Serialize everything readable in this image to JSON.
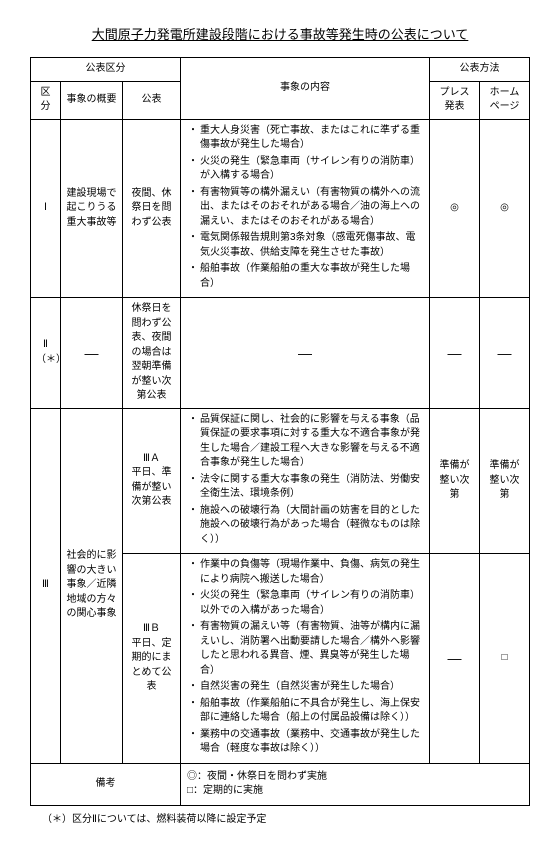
{
  "title": "大間原子力発電所建設段階における事故等発生時の公表について",
  "headers": {
    "kouhyou_kubun": "公表区分",
    "jishou_naiyou": "事象の内容",
    "kouhyou_houhou": "公表方法",
    "kubun": "区分",
    "jishou_gaiyou": "事象の概要",
    "kouhyou": "公表",
    "press": "プレス発表",
    "homepage": "ホームページ"
  },
  "rows": {
    "r1": {
      "kubun": "Ⅰ",
      "gaiyou": "建設現場で起こりうる重大事故等",
      "kouhyou": "夜間、休祭日を問わず公表",
      "items": [
        "重大人身災害（死亡事故、またはこれに準ずる重傷事故が発生した場合）",
        "火災の発生（緊急車両（サイレン有りの消防車）が入構する場合）",
        "有害物質等の構外漏えい（有害物質の構外への流出、またはそのおそれがある場合／油の海上への漏えい、またはそのおそれがある場合）",
        "電気関係報告規則第3条対象（感電死傷事故、電気火災事故、供給支障を発生させた事故）",
        "船舶事故（作業船舶の重大な事故が発生した場合）"
      ],
      "press": "◎",
      "hp": "◎"
    },
    "r2": {
      "kubun": "Ⅱ",
      "kubun_note": "（＊）",
      "gaiyou": "—",
      "kouhyou": "休祭日を問わず公表、夜間の場合は翌朝準備が整い次第公表",
      "items_dash": "—",
      "press": "—",
      "hp": "—"
    },
    "r3a": {
      "kouhyou": "ⅢＡ",
      "kouhyou_note": "平日、準備が整い次第公表",
      "items": [
        "品質保証に関し、社会的に影響を与える事象（品質保証の要求事項に対する重大な不適合事象が発生した場合／建設工程へ大きな影響を与える不適合事象が発生した場合）",
        "法令に関する重大な事象の発生（消防法、労働安全衛生法、環境条例）",
        "施設への破壊行為（大間計画の妨害を目的とした施設への破壊行為があった場合（軽微なものは除く））"
      ],
      "press": "準備が整い次第",
      "hp": "準備が整い次第"
    },
    "r3_common": {
      "kubun": "Ⅲ",
      "gaiyou": "社会的に影響の大きい事象／近隣地域の方々の関心事象"
    },
    "r3b": {
      "kouhyou": "ⅢＢ",
      "kouhyou_note": "平日、定期的にまとめて公表",
      "items": [
        "作業中の負傷等（現場作業中、負傷、病気の発生により病院へ搬送した場合）",
        "火災の発生（緊急車両（サイレン有りの消防車）以外での入構があった場合）",
        "有害物質の漏えい等（有害物質、油等が構内に漏えいし、消防署へ出動要請した場合／構外へ影響したと思われる異音、煙、異臭等が発生した場合）",
        "自然災害の発生（自然災害が発生した場合）",
        "船舶事故（作業船舶に不具合が発生し、海上保安部に連絡した場合（船上の付属品設備は除く））",
        "業務中の交通事故（業務中、交通事故が発生した場合（軽度な事故は除く））"
      ],
      "press": "—",
      "hp": "□"
    },
    "bikou_label": "備考",
    "bikou_items": [
      "◎：夜間・休祭日を問わず実施",
      "□：定期的に実施"
    ]
  },
  "footnote": "（＊）区分Ⅱについては、燃料装荷以降に設定予定"
}
